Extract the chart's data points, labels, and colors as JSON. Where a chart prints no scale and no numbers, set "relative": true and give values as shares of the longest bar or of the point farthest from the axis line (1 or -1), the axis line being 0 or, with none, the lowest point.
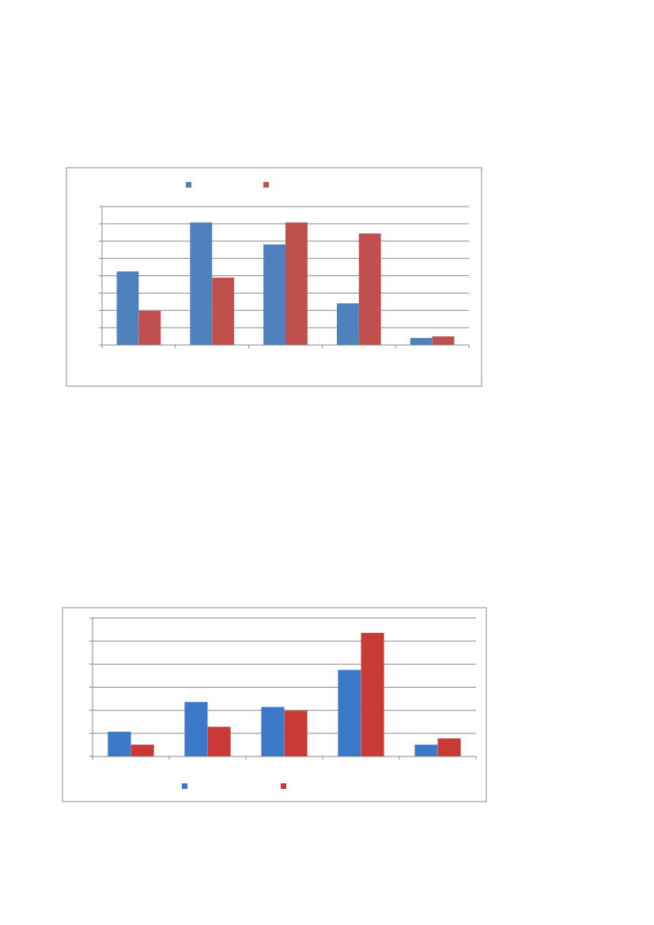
{
  "chart_data": [
    {
      "type": "bar",
      "relative": true,
      "categories": [
        null,
        null,
        null,
        null,
        null
      ],
      "grid": "y",
      "series": [
        {
          "color": "#4f81bd",
          "values": [
            0.6,
            1,
            0.82,
            0.34,
            0.057
          ]
        },
        {
          "color": "#c0504d",
          "values": [
            0.28,
            0.55,
            1,
            0.91,
            0.07
          ]
        }
      ]
    },
    {
      "type": "bar",
      "relative": true,
      "categories": [
        null,
        null,
        null,
        null,
        null
      ],
      "grid": "y",
      "series": [
        {
          "color": "#3c78c8",
          "values": [
            0.2,
            0.44,
            0.4,
            0.7,
            0.095
          ]
        },
        {
          "color": "#c83a36",
          "values": [
            0.095,
            0.24,
            0.37,
            1,
            0.146
          ]
        }
      ]
    }
  ]
}
